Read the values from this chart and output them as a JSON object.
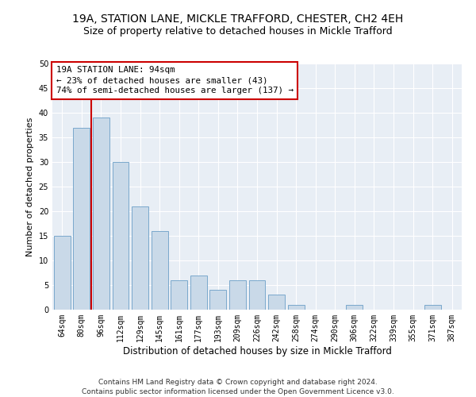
{
  "title1": "19A, STATION LANE, MICKLE TRAFFORD, CHESTER, CH2 4EH",
  "title2": "Size of property relative to detached houses in Mickle Trafford",
  "xlabel": "Distribution of detached houses by size in Mickle Trafford",
  "ylabel": "Number of detached properties",
  "categories": [
    "64sqm",
    "80sqm",
    "96sqm",
    "112sqm",
    "129sqm",
    "145sqm",
    "161sqm",
    "177sqm",
    "193sqm",
    "209sqm",
    "226sqm",
    "242sqm",
    "258sqm",
    "274sqm",
    "290sqm",
    "306sqm",
    "322sqm",
    "339sqm",
    "355sqm",
    "371sqm",
    "387sqm"
  ],
  "values": [
    15,
    37,
    39,
    30,
    21,
    16,
    6,
    7,
    4,
    6,
    6,
    3,
    1,
    0,
    0,
    1,
    0,
    0,
    0,
    1,
    0
  ],
  "bar_color": "#c9d9e8",
  "bar_edge_color": "#7aa8cc",
  "vline_x_index": 2,
  "vline_color": "#cc0000",
  "annotation_text": "19A STATION LANE: 94sqm\n← 23% of detached houses are smaller (43)\n74% of semi-detached houses are larger (137) →",
  "annotation_box_color": "#cc0000",
  "ylim": [
    0,
    50
  ],
  "yticks": [
    0,
    5,
    10,
    15,
    20,
    25,
    30,
    35,
    40,
    45,
    50
  ],
  "bg_color": "#e8eef5",
  "grid_color": "#ffffff",
  "footer_text": "Contains HM Land Registry data © Crown copyright and database right 2024.\nContains public sector information licensed under the Open Government Licence v3.0.",
  "title1_fontsize": 10,
  "title2_fontsize": 9,
  "xlabel_fontsize": 8.5,
  "ylabel_fontsize": 8,
  "tick_fontsize": 7,
  "annotation_fontsize": 7.8,
  "footer_fontsize": 6.5
}
